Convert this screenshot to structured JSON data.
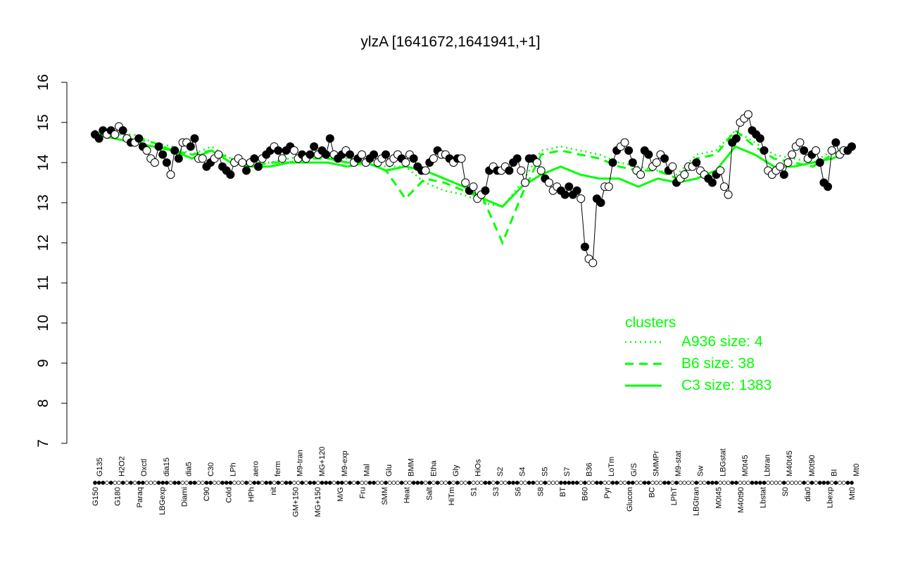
{
  "chart_data": {
    "type": "scatter",
    "title": "ylzA [1641672,1641941,+1]",
    "xlabel": "",
    "ylabel": "",
    "ylim": [
      7,
      16
    ],
    "y_ticks": [
      7,
      8,
      9,
      10,
      11,
      12,
      13,
      14,
      15,
      16
    ],
    "grid": false,
    "x_labels_bottom": [
      "G150",
      "G180",
      "Paraq",
      "LBGexp",
      "Diami",
      "C90",
      "Cold",
      "HPh",
      "nit",
      "GM+150",
      "MG+150",
      "M/G",
      "Fru",
      "SMM",
      "Heat",
      "Salt",
      "HiTm",
      "S1",
      "S3",
      "S6",
      "S8",
      "BT",
      "B60",
      "Pyr",
      "Glucon",
      "BC",
      "LPhT",
      "LBGtran",
      "M0t45",
      "M40t90",
      "Lbstat",
      "S0",
      "dia0",
      "Lbexp",
      "Mt0"
    ],
    "x_labels_top": [
      "G135",
      "H2O2",
      "Oxctl",
      "dia15",
      "dia5",
      "C30",
      "LPh",
      "aero",
      "ferm",
      "M9-tran",
      "MG+120",
      "M9-exp",
      "Mal",
      "Glu",
      "BMM",
      "Etha",
      "Gly",
      "HiOs",
      "S2",
      "S4",
      "S5",
      "S7",
      "B36",
      "LoTm",
      "G/S",
      "SMMPr",
      "M9-stat",
      "Sw",
      "LBGstat",
      "M0t45",
      "Lbtran",
      "M40t45",
      "M0t90",
      "BI",
      "Mt0"
    ],
    "series": [
      {
        "name": "A936 size: 4",
        "style": "dotted",
        "color": "#00ff00",
        "values": [
          14.8,
          14.7,
          14.7,
          14.5,
          14.4,
          14.2,
          14.4,
          14.1,
          14.0,
          14.0,
          14.1,
          14.2,
          14.1,
          14.1,
          14.0,
          13.9,
          13.9,
          13.5,
          13.3,
          13.2,
          13.0,
          12.9,
          13.5,
          14.3,
          14.4,
          14.3,
          14.2,
          14.0,
          13.9,
          13.8,
          13.7,
          14.2,
          14.3,
          14.8,
          14.5,
          14.2,
          14.1,
          14.0,
          14.3,
          14.4
        ]
      },
      {
        "name": "B6 size: 38",
        "style": "dashed",
        "color": "#00ff00",
        "values": [
          14.7,
          14.7,
          14.6,
          14.5,
          14.3,
          14.2,
          14.3,
          14.1,
          13.9,
          14.0,
          14.0,
          14.1,
          14.1,
          14.0,
          14.0,
          13.8,
          13.1,
          13.6,
          13.5,
          13.3,
          13.1,
          12.0,
          13.2,
          14.2,
          14.3,
          14.2,
          14.1,
          13.9,
          13.8,
          13.8,
          13.6,
          14.1,
          14.2,
          14.8,
          14.4,
          14.1,
          14.0,
          13.9,
          14.2,
          14.4
        ]
      },
      {
        "name": "C3 size: 1383",
        "style": "solid",
        "color": "#00ff00",
        "values": [
          14.7,
          14.6,
          14.5,
          14.4,
          14.3,
          14.1,
          14.3,
          14.0,
          13.9,
          13.9,
          14.0,
          14.0,
          14.0,
          13.9,
          14.0,
          13.8,
          13.9,
          13.8,
          13.6,
          13.4,
          13.1,
          12.9,
          13.4,
          13.7,
          13.9,
          13.7,
          13.6,
          13.6,
          13.4,
          13.6,
          13.5,
          13.6,
          13.8,
          14.4,
          14.2,
          13.9,
          13.9,
          14.0,
          14.1,
          14.3
        ]
      }
    ],
    "points": [
      [
        14.7,
        1
      ],
      [
        14.6,
        1
      ],
      [
        14.8,
        1
      ],
      [
        14.7,
        0
      ],
      [
        14.8,
        1
      ],
      [
        14.7,
        0
      ],
      [
        14.9,
        0
      ],
      [
        14.8,
        1
      ],
      [
        14.6,
        0
      ],
      [
        14.5,
        1
      ],
      [
        14.5,
        0
      ],
      [
        14.6,
        1
      ],
      [
        14.4,
        1
      ],
      [
        14.3,
        0
      ],
      [
        14.1,
        0
      ],
      [
        14.0,
        0
      ],
      [
        14.4,
        1
      ],
      [
        14.2,
        1
      ],
      [
        14.0,
        1
      ],
      [
        13.7,
        0
      ],
      [
        14.3,
        1
      ],
      [
        14.1,
        1
      ],
      [
        14.5,
        0
      ],
      [
        14.5,
        0
      ],
      [
        14.4,
        1
      ],
      [
        14.6,
        1
      ],
      [
        14.1,
        0
      ],
      [
        14.1,
        0
      ],
      [
        13.9,
        1
      ],
      [
        14.0,
        1
      ],
      [
        14.1,
        0
      ],
      [
        14.2,
        0
      ],
      [
        13.9,
        1
      ],
      [
        13.8,
        1
      ],
      [
        13.7,
        1
      ],
      [
        14.0,
        0
      ],
      [
        14.1,
        0
      ],
      [
        14.0,
        0
      ],
      [
        13.8,
        1
      ],
      [
        14.0,
        0
      ],
      [
        14.1,
        1
      ],
      [
        13.9,
        1
      ],
      [
        14.1,
        0
      ],
      [
        14.2,
        1
      ],
      [
        14.3,
        1
      ],
      [
        14.4,
        0
      ],
      [
        14.3,
        1
      ],
      [
        14.1,
        0
      ],
      [
        14.3,
        1
      ],
      [
        14.4,
        1
      ],
      [
        14.3,
        0
      ],
      [
        14.1,
        0
      ],
      [
        14.2,
        1
      ],
      [
        14.1,
        0
      ],
      [
        14.2,
        1
      ],
      [
        14.4,
        1
      ],
      [
        14.2,
        0
      ],
      [
        14.3,
        1
      ],
      [
        14.2,
        1
      ],
      [
        14.6,
        1
      ],
      [
        14.2,
        0
      ],
      [
        14.1,
        1
      ],
      [
        14.2,
        1
      ],
      [
        14.3,
        0
      ],
      [
        14.2,
        1
      ],
      [
        14.0,
        0
      ],
      [
        14.1,
        1
      ],
      [
        14.2,
        0
      ],
      [
        14.0,
        0
      ],
      [
        14.1,
        1
      ],
      [
        14.2,
        1
      ],
      [
        14.0,
        0
      ],
      [
        14.1,
        0
      ],
      [
        14.2,
        1
      ],
      [
        14.0,
        0
      ],
      [
        14.1,
        0
      ],
      [
        14.2,
        0
      ],
      [
        14.1,
        1
      ],
      [
        14.0,
        0
      ],
      [
        14.2,
        0
      ],
      [
        14.1,
        1
      ],
      [
        13.9,
        1
      ],
      [
        13.8,
        1
      ],
      [
        13.8,
        0
      ],
      [
        14.0,
        1
      ],
      [
        14.1,
        0
      ],
      [
        14.3,
        1
      ],
      [
        14.2,
        0
      ],
      [
        14.2,
        0
      ],
      [
        14.1,
        1
      ],
      [
        14.0,
        0
      ],
      [
        14.1,
        1
      ],
      [
        14.1,
        0
      ],
      [
        13.5,
        0
      ],
      [
        13.3,
        1
      ],
      [
        13.4,
        0
      ],
      [
        13.1,
        0
      ],
      [
        13.2,
        0
      ],
      [
        13.3,
        1
      ],
      [
        13.8,
        1
      ],
      [
        13.9,
        0
      ],
      [
        13.8,
        1
      ],
      [
        13.8,
        0
      ],
      [
        13.9,
        0
      ],
      [
        13.8,
        1
      ],
      [
        14.0,
        1
      ],
      [
        14.1,
        1
      ],
      [
        13.8,
        0
      ],
      [
        13.5,
        0
      ],
      [
        14.1,
        1
      ],
      [
        14.1,
        1
      ],
      [
        14.0,
        0
      ],
      [
        13.8,
        0
      ],
      [
        13.6,
        1
      ],
      [
        13.5,
        0
      ],
      [
        13.3,
        0
      ],
      [
        13.4,
        0
      ],
      [
        13.3,
        1
      ],
      [
        13.2,
        1
      ],
      [
        13.4,
        1
      ],
      [
        13.2,
        1
      ],
      [
        13.3,
        1
      ],
      [
        13.1,
        0
      ],
      [
        11.9,
        1
      ],
      [
        11.6,
        0
      ],
      [
        11.5,
        0
      ],
      [
        13.1,
        1
      ],
      [
        13.0,
        1
      ],
      [
        13.4,
        0
      ],
      [
        13.4,
        0
      ],
      [
        14.0,
        1
      ],
      [
        14.3,
        1
      ],
      [
        14.4,
        0
      ],
      [
        14.5,
        0
      ],
      [
        14.3,
        1
      ],
      [
        14.0,
        1
      ],
      [
        13.8,
        0
      ],
      [
        13.7,
        0
      ],
      [
        14.3,
        1
      ],
      [
        14.2,
        1
      ],
      [
        13.9,
        0
      ],
      [
        14.0,
        0
      ],
      [
        14.2,
        0
      ],
      [
        14.1,
        1
      ],
      [
        13.8,
        1
      ],
      [
        13.9,
        0
      ],
      [
        13.5,
        1
      ],
      [
        13.6,
        0
      ],
      [
        13.7,
        0
      ],
      [
        13.9,
        0
      ],
      [
        13.9,
        0
      ],
      [
        14.0,
        1
      ],
      [
        13.8,
        0
      ],
      [
        13.7,
        0
      ],
      [
        13.6,
        1
      ],
      [
        13.5,
        1
      ],
      [
        13.7,
        1
      ],
      [
        13.8,
        0
      ],
      [
        13.4,
        0
      ],
      [
        13.2,
        0
      ],
      [
        14.5,
        1
      ],
      [
        14.6,
        1
      ],
      [
        15.0,
        0
      ],
      [
        15.1,
        0
      ],
      [
        15.2,
        0
      ],
      [
        14.8,
        1
      ],
      [
        14.7,
        1
      ],
      [
        14.6,
        1
      ],
      [
        14.3,
        1
      ],
      [
        13.8,
        0
      ],
      [
        13.7,
        0
      ],
      [
        13.8,
        0
      ],
      [
        13.9,
        0
      ],
      [
        13.7,
        1
      ],
      [
        14.0,
        0
      ],
      [
        14.2,
        0
      ],
      [
        14.4,
        0
      ],
      [
        14.5,
        0
      ],
      [
        14.3,
        1
      ],
      [
        14.1,
        0
      ],
      [
        14.2,
        1
      ],
      [
        14.3,
        0
      ],
      [
        14.0,
        1
      ],
      [
        13.5,
        1
      ],
      [
        13.4,
        1
      ],
      [
        14.3,
        0
      ],
      [
        14.5,
        1
      ],
      [
        14.2,
        0
      ],
      [
        14.3,
        0
      ],
      [
        14.3,
        1
      ],
      [
        14.4,
        1
      ]
    ]
  },
  "legend": {
    "title": "clusters",
    "entries": [
      {
        "label": "A936 size: 4",
        "style": "dotted"
      },
      {
        "label": "B6 size: 38",
        "style": "dashed"
      },
      {
        "label": "C3 size: 1383",
        "style": "solid"
      }
    ]
  },
  "colors": {
    "series": "#00ff00",
    "axis": "#000000",
    "point_fill_filled": "#000000",
    "point_fill_open": "#ffffff"
  }
}
